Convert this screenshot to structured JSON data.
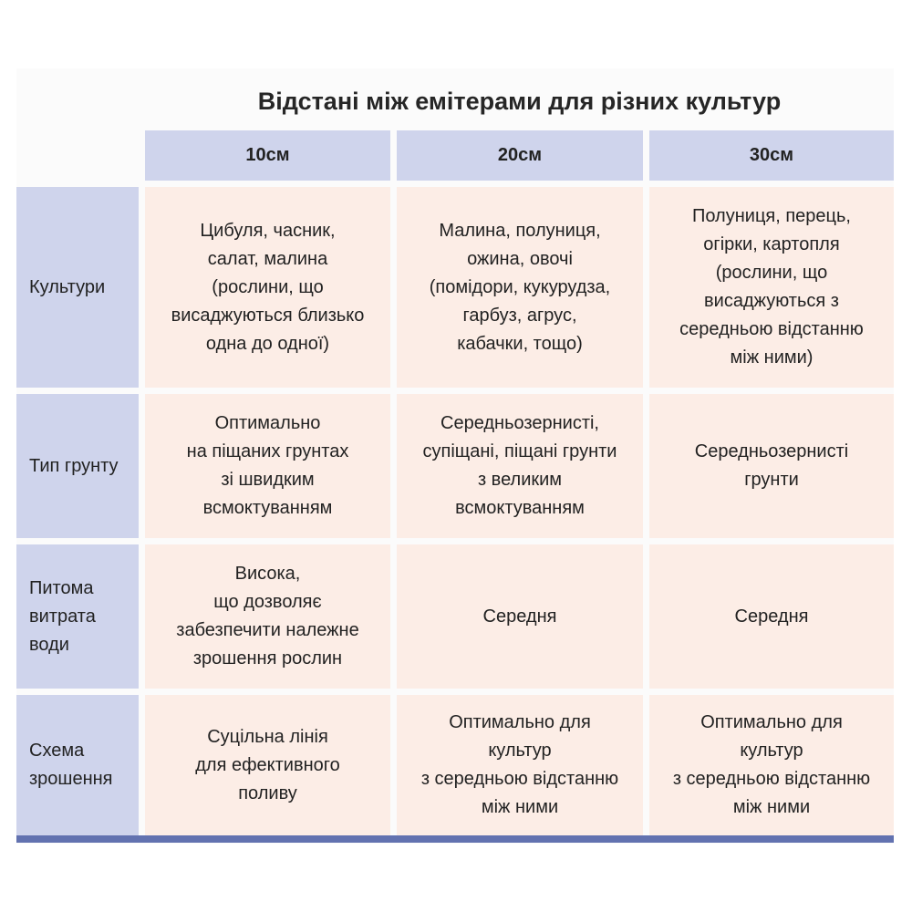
{
  "title": "Відстані між емітерами для різних культур",
  "columns": [
    "10см",
    "20см",
    "30см"
  ],
  "rows": [
    {
      "label": "Культури",
      "cells": [
        "Цибуля, часник,\nсалат, малина\n(рослини, що\nвисаджуються близько\nодна до одної)",
        "Малина, полуниця,\nожина, овочі\n(помідори, кукурудза,\nгарбуз, агрус,\nкабачки, тощо)",
        "Полуниця, перець,\nогірки, картопля\n(рослини, що\nвисаджуються з\nсередньою відстанню\nміж ними)"
      ]
    },
    {
      "label": "Тип грунту",
      "cells": [
        "Оптимально\nна піщаних грунтах\nзі швидким\nвсмоктуванням",
        "Середньозернисті,\nсупіщані, піщані грунти\nз великим\nвсмоктуванням",
        "Середньозернисті\nгрунти"
      ]
    },
    {
      "label": "Питома\nвитрата\nводи",
      "cells": [
        "Висока,\nщо дозволяє\nзабезпечити належне\nзрошення рослин",
        "Середня",
        "Середня"
      ]
    },
    {
      "label": "Схема\nзрошення",
      "cells": [
        "Суцільна лінія\nдля ефективного\nполиву",
        "Оптимально для\nкультур\nз середньою відстанню\nміж ними",
        "Оптимально для\nкультур\nз середньою відстанню\nміж ними"
      ]
    }
  ],
  "colors": {
    "header": "#cfd4ec",
    "cell": "#fcede6",
    "bar": "#6272b0"
  }
}
